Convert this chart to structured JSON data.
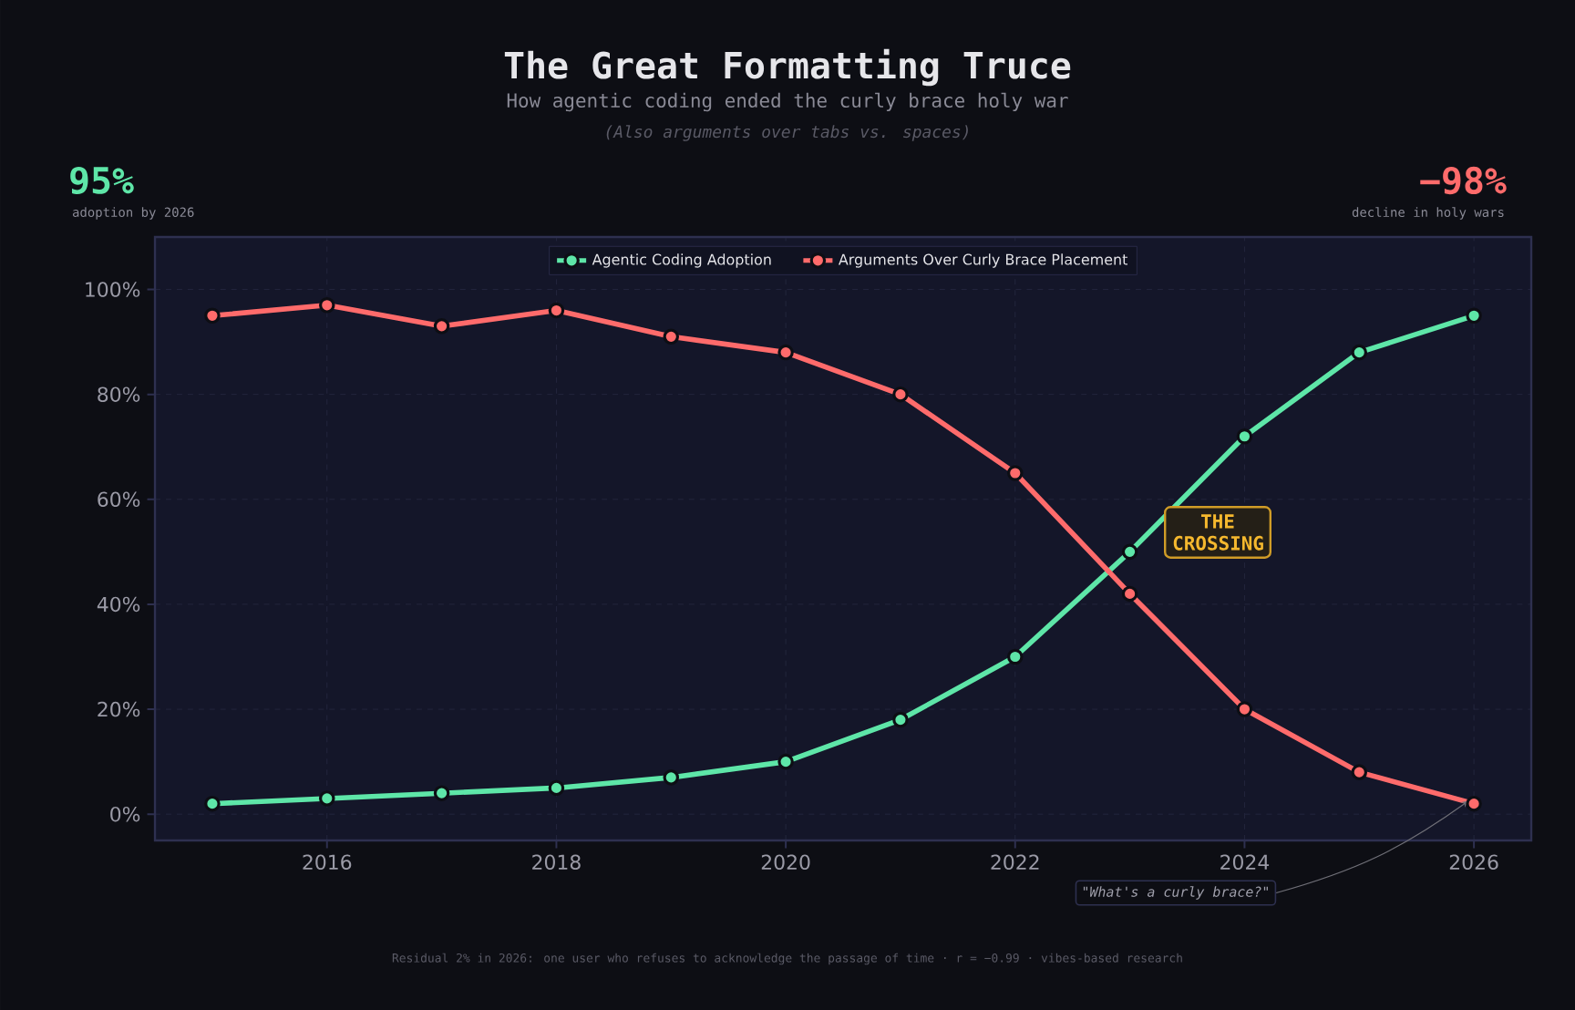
{
  "chart_data": {
    "type": "line",
    "title": "The Great Formatting Truce",
    "subtitle": "How agentic coding ended the curly brace holy war",
    "x": [
      2015,
      2016,
      2017,
      2018,
      2019,
      2020,
      2021,
      2022,
      2023,
      2024,
      2025,
      2026
    ],
    "series": [
      {
        "name": "Agentic Coding Adoption",
        "color": "#5ee6a8",
        "values": [
          2,
          3,
          4,
          5,
          7,
          10,
          18,
          30,
          50,
          72,
          88,
          95
        ]
      },
      {
        "name": "Arguments Over Curly Brace Placement",
        "color": "#ff6b6b",
        "values": [
          95,
          97,
          93,
          96,
          91,
          88,
          80,
          65,
          42,
          20,
          8,
          2
        ]
      }
    ],
    "xlim": [
      2014.5,
      2026.5
    ],
    "xticks": [
      2016,
      2018,
      2020,
      2022,
      2024,
      2026
    ],
    "ylim": [
      -5,
      110
    ],
    "yticks": [
      {
        "value": 0,
        "label": "0%"
      },
      {
        "value": 20,
        "label": "20%"
      },
      {
        "value": 40,
        "label": "40%"
      },
      {
        "value": 60,
        "label": "60%"
      },
      {
        "value": 80,
        "label": "80%"
      },
      {
        "value": 100,
        "label": "100%"
      }
    ],
    "grid": true,
    "legend": "top",
    "marker": "circle",
    "line_style": "solid",
    "annotations": [
      "(Also arguments over tabs vs. spaces)",
      "95%",
      "adoption by 2026",
      "−98%",
      "decline in holy wars",
      "Residual 2% in 2026: one user who refuses to acknowledge the passage of time  ·  r = −0.99  ·  vibes-based research",
      "THE CROSSING",
      {
        "text": "\"What's a curly brace?\"",
        "x": 2026,
        "y": 2
      }
    ]
  }
}
